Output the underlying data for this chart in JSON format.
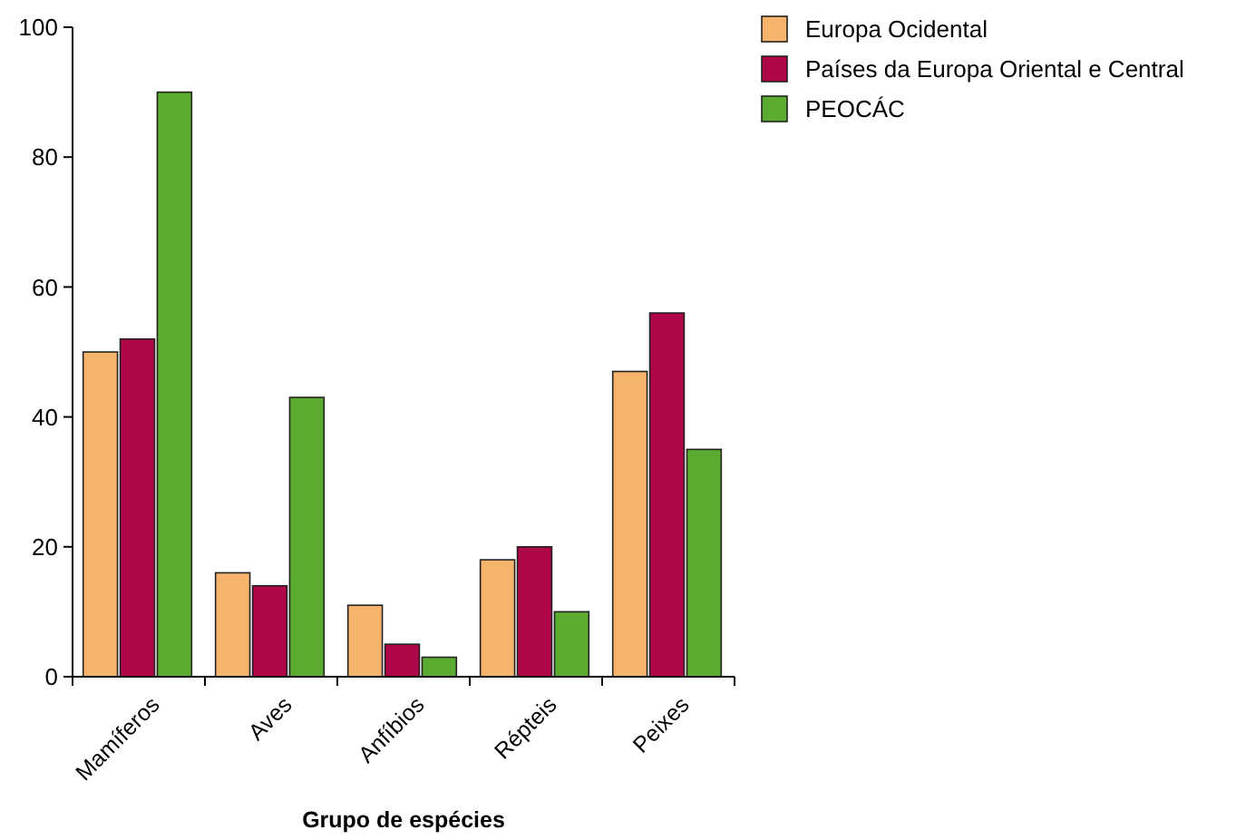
{
  "chart_data": {
    "type": "bar",
    "xlabel": "Grupo de espécies",
    "categories": [
      "Mamíferos",
      "Aves",
      "Anfíbios",
      "Répteis",
      "Peixes"
    ],
    "series": [
      {
        "name": "Europa Ocidental",
        "color": "#f5b36b",
        "values": [
          50,
          16,
          11,
          18,
          47
        ]
      },
      {
        "name": "Países da Europa Oriental e Central",
        "color": "#ae0649",
        "values": [
          52,
          14,
          5,
          20,
          56
        ]
      },
      {
        "name": "PEOCÁC",
        "color": "#5aab2f",
        "values": [
          90,
          43,
          3,
          10,
          35
        ]
      }
    ],
    "ylim": [
      0,
      100
    ],
    "yticks": [
      0,
      20,
      40,
      60,
      80,
      100
    ],
    "grid": false,
    "legend": "top right"
  }
}
